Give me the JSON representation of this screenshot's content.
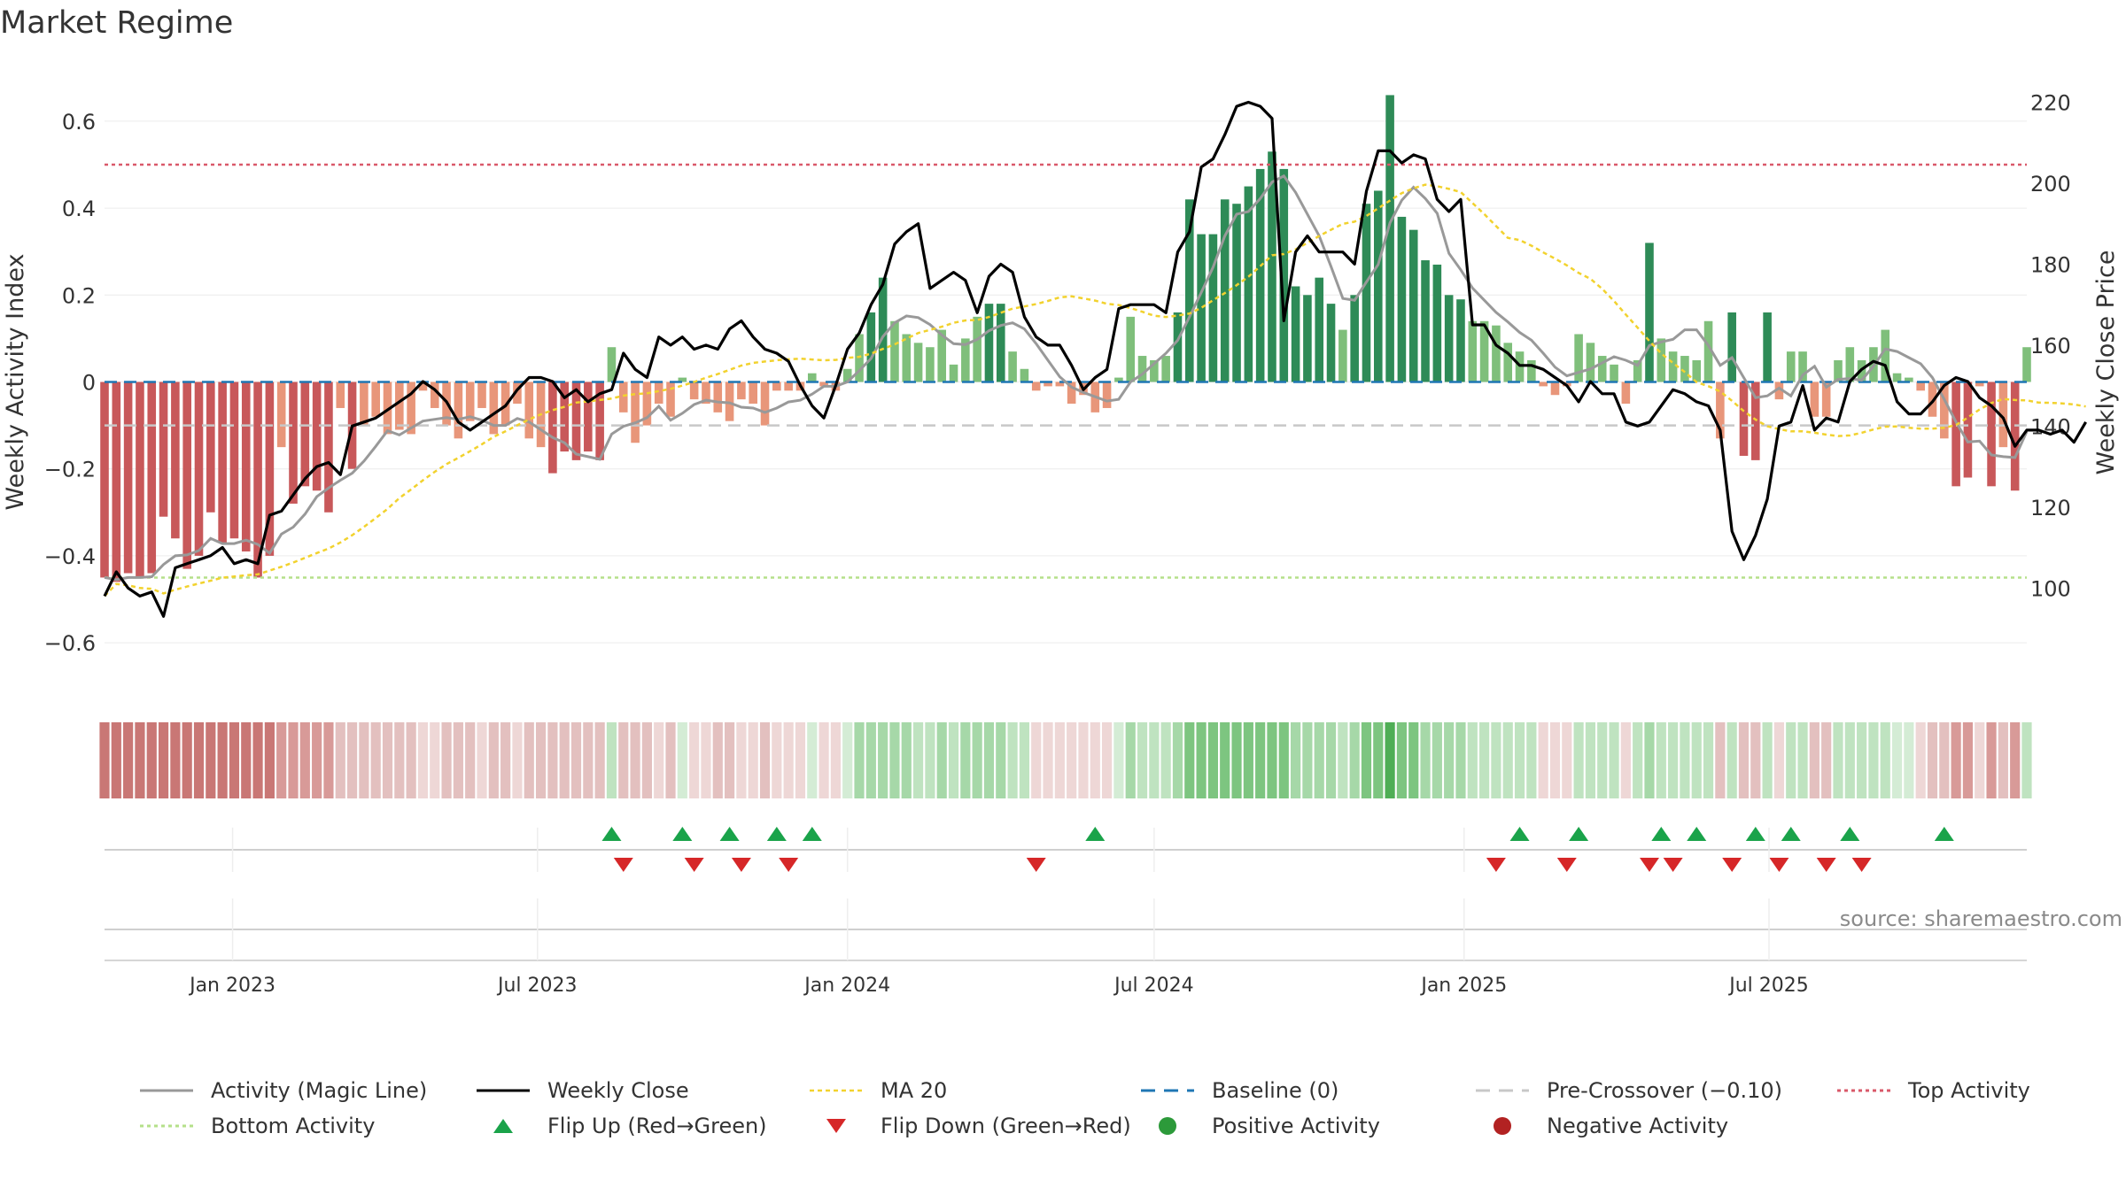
{
  "title": "Market Regime",
  "source": "source: sharemaestro.com",
  "colors": {
    "pos_dark": "#2e8b57",
    "pos_light": "#7fbf7b",
    "neg_dark": "#c8585a",
    "neg_light": "#e8967a",
    "close": "#000000",
    "activity": "#999999",
    "ma": "#f2d22e",
    "baseline": "#1f77b4",
    "pre": "#c8c8c8",
    "top": "#d9596a",
    "bottom": "#b5e08a",
    "flip_up": "#1aa34a",
    "flip_down": "#d62728"
  },
  "chart_data": {
    "type": "bar",
    "x_start": "2022-10-17",
    "x_step_days": 7,
    "left_axis": {
      "label": "Weekly Activity Index",
      "ylim": [
        -0.72,
        0.72
      ],
      "ticks": [
        "0.6",
        "0.4",
        "0.2",
        "0",
        "−0.2",
        "−0.4",
        "−0.6"
      ]
    },
    "right_axis": {
      "label": "Weekly Close Price",
      "ylim": [
        73.6,
        228.2
      ],
      "ticks": [
        "220",
        "200",
        "180",
        "160",
        "140",
        "120",
        "100"
      ]
    },
    "x_ticks": [
      "Jan 2023",
      "Jul 2023",
      "Jan 2024",
      "Jul 2024",
      "Jan 2025",
      "Jul 2025"
    ],
    "x_tick_dates": [
      "2023-01-01",
      "2023-07-01",
      "2024-01-01",
      "2024-07-01",
      "2025-01-01",
      "2025-07-01"
    ],
    "reference_lines": {
      "top_activity": 0.5,
      "bottom_activity": -0.45,
      "pre_crossover": -0.1,
      "baseline": 0
    },
    "activity_bars": [
      -0.45,
      -0.46,
      -0.44,
      -0.45,
      -0.44,
      -0.31,
      -0.36,
      -0.43,
      -0.4,
      -0.3,
      -0.37,
      -0.36,
      -0.39,
      -0.45,
      -0.4,
      -0.15,
      -0.28,
      -0.24,
      -0.25,
      -0.3,
      -0.06,
      -0.2,
      -0.1,
      -0.08,
      -0.12,
      -0.11,
      -0.12,
      -0.02,
      -0.06,
      -0.1,
      -0.13,
      -0.09,
      -0.06,
      -0.12,
      -0.1,
      -0.05,
      -0.13,
      -0.15,
      -0.21,
      -0.16,
      -0.18,
      -0.16,
      -0.18,
      0.08,
      -0.07,
      -0.14,
      -0.1,
      -0.05,
      -0.08,
      0.01,
      -0.04,
      -0.05,
      -0.07,
      -0.09,
      -0.04,
      -0.05,
      -0.1,
      -0.02,
      -0.02,
      -0.02,
      0.02,
      -0.01,
      -0.02,
      0.03,
      0.11,
      0.16,
      0.24,
      0.14,
      0.11,
      0.09,
      0.08,
      0.12,
      0.04,
      0.1,
      0.15,
      0.18,
      0.18,
      0.07,
      0.03,
      -0.02,
      -0.01,
      -0.01,
      -0.05,
      -0.03,
      -0.07,
      -0.06,
      0.01,
      0.15,
      0.06,
      0.05,
      0.06,
      0.16,
      0.42,
      0.34,
      0.34,
      0.42,
      0.41,
      0.45,
      0.49,
      0.53,
      0.49,
      0.22,
      0.2,
      0.24,
      0.18,
      0.12,
      0.2,
      0.41,
      0.44,
      0.66,
      0.38,
      0.35,
      0.28,
      0.27,
      0.2,
      0.19,
      0.14,
      0.14,
      0.13,
      0.09,
      0.07,
      0.05,
      -0.01,
      -0.03,
      -0.01,
      0.11,
      0.09,
      0.06,
      0.04,
      -0.05,
      0.05,
      0.32,
      0.1,
      0.07,
      0.06,
      0.05,
      0.14,
      -0.13,
      0.16,
      -0.17,
      -0.18,
      0.16,
      -0.04,
      0.07,
      0.07,
      -0.08,
      -0.08,
      0.05,
      0.08,
      0.05,
      0.08,
      0.12,
      0.02,
      0.01,
      -0.02,
      -0.08,
      -0.13,
      -0.24,
      -0.22,
      -0.01,
      -0.24,
      -0.15,
      -0.25,
      0.08
    ],
    "weekly_close": [
      98,
      104,
      100,
      98,
      99,
      93,
      105,
      106,
      107,
      108,
      110,
      106,
      107,
      106,
      118,
      119,
      123,
      127,
      130,
      131,
      128,
      140,
      141,
      142,
      144,
      146,
      148,
      151,
      149,
      146,
      141,
      139,
      141,
      143,
      145,
      149,
      152,
      152,
      151,
      147,
      149,
      146,
      148,
      149,
      158,
      154,
      152,
      162,
      160,
      162,
      159,
      160,
      159,
      164,
      166,
      162,
      159,
      158,
      156,
      150,
      145,
      142,
      150,
      159,
      163,
      170,
      175,
      185,
      188,
      190,
      174,
      176,
      178,
      176,
      168,
      177,
      180,
      178,
      167,
      162,
      160,
      160,
      155,
      149,
      152,
      154,
      169,
      170,
      170,
      170,
      168,
      183,
      188,
      204,
      206,
      212,
      219,
      220,
      219,
      216,
      166,
      183,
      187,
      183,
      183,
      183,
      180,
      198,
      208,
      208,
      205,
      207,
      206,
      196,
      193,
      196,
      165,
      165,
      160,
      158,
      155,
      155,
      154,
      152,
      150,
      146,
      151,
      148,
      148,
      141,
      140,
      141,
      145,
      149,
      148,
      146,
      145,
      139,
      114,
      107,
      113,
      122,
      140,
      141,
      150,
      139,
      142,
      141,
      151,
      154,
      156,
      155,
      146,
      143,
      143,
      146,
      150,
      152,
      151,
      147,
      145,
      142,
      135,
      139,
      139,
      138,
      139,
      136,
      141
    ]
  },
  "sub_panels": {
    "heat_strip_colors": [
      "#c97775",
      "#c97775",
      "#c97775",
      "#c97775",
      "#c97775",
      "#c97775",
      "#c97775",
      "#c97775",
      "#c97775",
      "#c97775",
      "#c97775",
      "#c97775",
      "#c97775",
      "#c97775",
      "#c97775",
      "#d89a98",
      "#d89a98",
      "#d89a98",
      "#d89a98",
      "#d89a98",
      "#e3c0bf",
      "#e3c0bf",
      "#e3c0bf",
      "#e3c0bf",
      "#e3c0bf",
      "#e3c0bf",
      "#e3c0bf",
      "#eed7d6",
      "#eed7d6",
      "#e3c0bf",
      "#e3c0bf",
      "#e3c0bf",
      "#eed7d6",
      "#e3c0bf",
      "#e3c0bf",
      "#eed7d6",
      "#e3c0bf",
      "#e3c0bf",
      "#e3c0bf",
      "#e3c0bf",
      "#e3c0bf",
      "#e3c0bf",
      "#e3c0bf",
      "#bfe3c0",
      "#e3c0bf",
      "#e3c0bf",
      "#e3c0bf",
      "#eed7d6",
      "#e3c0bf",
      "#d4ecd5",
      "#eed7d6",
      "#eed7d6",
      "#e3c0bf",
      "#e3c0bf",
      "#eed7d6",
      "#eed7d6",
      "#e3c0bf",
      "#eed7d6",
      "#eed7d6",
      "#eed7d6",
      "#d4ecd5",
      "#eed7d6",
      "#eed7d6",
      "#d4ecd5",
      "#a6d8a8",
      "#a6d8a8",
      "#a6d8a8",
      "#a6d8a8",
      "#a6d8a8",
      "#bfe3c0",
      "#bfe3c0",
      "#a6d8a8",
      "#bfe3c0",
      "#a6d8a8",
      "#a6d8a8",
      "#a6d8a8",
      "#a6d8a8",
      "#bfe3c0",
      "#bfe3c0",
      "#eed7d6",
      "#eed7d6",
      "#eed7d6",
      "#eed7d6",
      "#eed7d6",
      "#eed7d6",
      "#eed7d6",
      "#d4ecd5",
      "#a6d8a8",
      "#bfe3c0",
      "#bfe3c0",
      "#bfe3c0",
      "#a6d8a8",
      "#7dc580",
      "#7dc580",
      "#7dc580",
      "#7dc580",
      "#7dc580",
      "#7dc580",
      "#7dc580",
      "#7dc580",
      "#7dc580",
      "#a6d8a8",
      "#a6d8a8",
      "#a6d8a8",
      "#a6d8a8",
      "#bfe3c0",
      "#a6d8a8",
      "#7dc580",
      "#7dc580",
      "#4fae55",
      "#7dc580",
      "#7dc580",
      "#a6d8a8",
      "#a6d8a8",
      "#a6d8a8",
      "#a6d8a8",
      "#bfe3c0",
      "#bfe3c0",
      "#bfe3c0",
      "#bfe3c0",
      "#bfe3c0",
      "#bfe3c0",
      "#eed7d6",
      "#eed7d6",
      "#eed7d6",
      "#bfe3c0",
      "#bfe3c0",
      "#bfe3c0",
      "#bfe3c0",
      "#eed7d6",
      "#bfe3c0",
      "#a6d8a8",
      "#bfe3c0",
      "#bfe3c0",
      "#bfe3c0",
      "#bfe3c0",
      "#bfe3c0",
      "#e3c0bf",
      "#bfe3c0",
      "#e3c0bf",
      "#e3c0bf",
      "#bfe3c0",
      "#eed7d6",
      "#bfe3c0",
      "#bfe3c0",
      "#e3c0bf",
      "#e3c0bf",
      "#bfe3c0",
      "#bfe3c0",
      "#bfe3c0",
      "#bfe3c0",
      "#bfe3c0",
      "#d4ecd5",
      "#d4ecd5",
      "#eed7d6",
      "#e3c0bf",
      "#e3c0bf",
      "#d89a98",
      "#d89a98",
      "#eed7d6",
      "#d89a98",
      "#e3c0bf",
      "#d89a98",
      "#bfe3c0"
    ],
    "flip_up_weeks": [
      43,
      49,
      53,
      57,
      60,
      84,
      120,
      125,
      132,
      135,
      140,
      143,
      148,
      156
    ],
    "flip_down_weeks": [
      44,
      50,
      54,
      58,
      79,
      118,
      124,
      131,
      133,
      138,
      142,
      146,
      149
    ]
  },
  "legend": [
    [
      {
        "key": "activity",
        "label": "Activity (Magic Line)"
      },
      {
        "key": "close",
        "label": "Weekly Close"
      },
      {
        "key": "ma",
        "label": "MA 20"
      },
      {
        "key": "baseline",
        "label": "Baseline (0)"
      },
      {
        "key": "pre",
        "label": "Pre-Crossover (−0.10)"
      },
      {
        "key": "top",
        "label": "Top Activity"
      }
    ],
    [
      {
        "key": "bottom",
        "label": "Bottom Activity"
      },
      {
        "key": "flip_up",
        "label": "Flip Up (Red→Green)"
      },
      {
        "key": "flip_down",
        "label": "Flip Down (Green→Red)"
      },
      {
        "key": "pos_dot",
        "label": "Positive Activity"
      },
      {
        "key": "neg_dot",
        "label": "Negative Activity"
      }
    ]
  ]
}
